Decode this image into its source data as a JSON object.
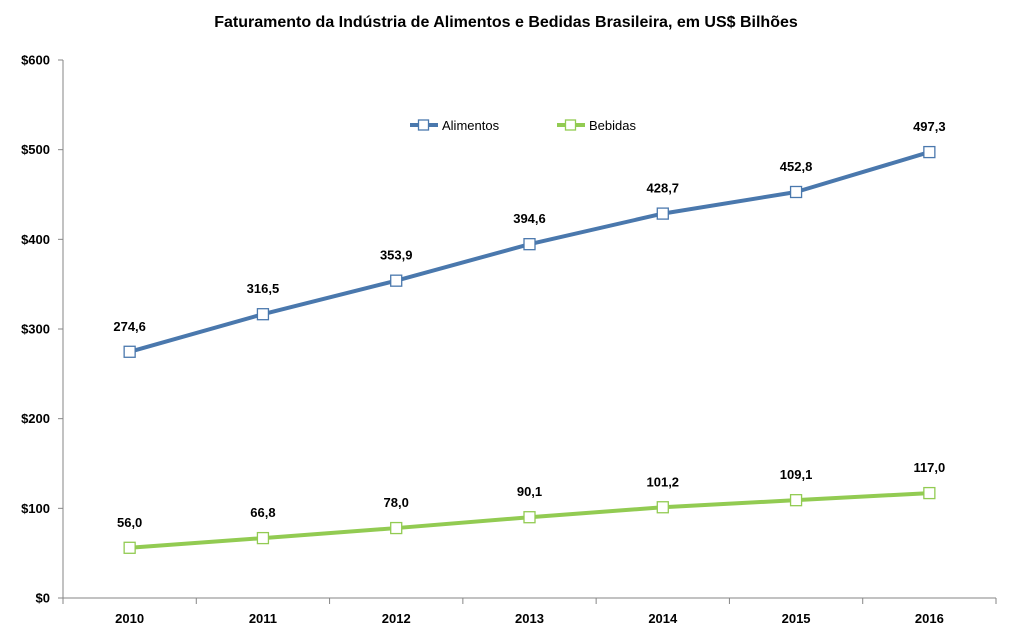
{
  "chart_data": {
    "type": "line",
    "title": "Faturamento da Indústria de Alimentos e Bedidas Brasileira, em US$ Bilhões",
    "categories": [
      "2010",
      "2011",
      "2012",
      "2013",
      "2014",
      "2015",
      "2016"
    ],
    "ylim": [
      0,
      600
    ],
    "yticks": [
      0,
      100,
      200,
      300,
      400,
      500,
      600
    ],
    "ytick_labels": [
      "$0",
      "$100",
      "$200",
      "$300",
      "$400",
      "$500",
      "$600"
    ],
    "legend_position": "top-center",
    "series": [
      {
        "name": "Alimentos",
        "color": "#4a78ad",
        "values": [
          274.6,
          316.5,
          353.9,
          394.6,
          428.7,
          452.8,
          497.3
        ],
        "value_labels": [
          "274,6",
          "316,5",
          "353,9",
          "394,6",
          "428,7",
          "452,8",
          "497,3"
        ]
      },
      {
        "name": "Bebidas",
        "color": "#92cb52",
        "values": [
          56.0,
          66.8,
          78.0,
          90.1,
          101.2,
          109.1,
          117.0
        ],
        "value_labels": [
          "56,0",
          "66,8",
          "78,0",
          "90,1",
          "101,2",
          "109,1",
          "117,0"
        ]
      }
    ]
  }
}
